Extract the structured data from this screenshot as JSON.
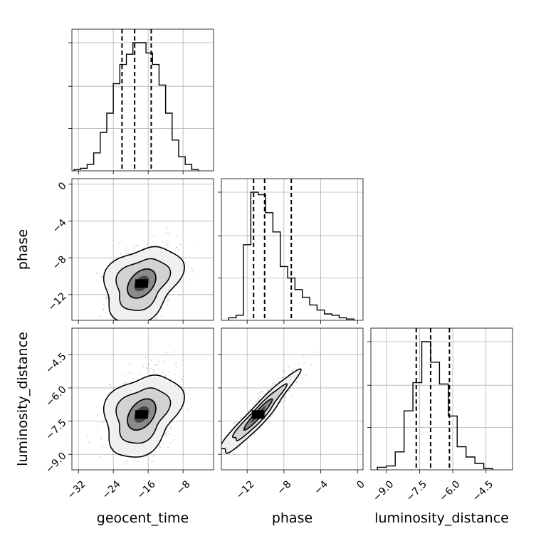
{
  "chart_data": {
    "type": "corner",
    "parameters": [
      "geocent_time",
      "phase",
      "luminosity_distance"
    ],
    "axes": {
      "geocent_time": {
        "range": [
          -33.5,
          -1.0
        ],
        "ticks": [
          -32,
          -24,
          -16,
          -8
        ],
        "tick_labels": [
          "−32",
          "−24",
          "−16",
          "−8"
        ]
      },
      "phase": {
        "range": [
          -14.8,
          0.6
        ],
        "ticks": [
          -12,
          -8,
          -4,
          0
        ],
        "tick_labels": [
          "−12",
          "−8",
          "−4",
          "0"
        ]
      },
      "luminosity_distance": {
        "range": [
          -9.7,
          -3.3
        ],
        "ticks": [
          -9.0,
          -7.5,
          -6.0,
          -4.5
        ],
        "tick_labels": [
          "−9.0",
          "−7.5",
          "−6.0",
          "−4.5"
        ]
      }
    },
    "histograms": [
      {
        "parameter": "geocent_time",
        "bin_edges": [
          -33.0,
          -31.5,
          -30.0,
          -28.5,
          -27.0,
          -25.5,
          -24.0,
          -22.5,
          -21.0,
          -19.5,
          -18.0,
          -16.5,
          -15.0,
          -13.5,
          -12.0,
          -10.5,
          -9.0,
          -7.5,
          -6.0,
          -4.5
        ],
        "counts": [
          0.01,
          0.02,
          0.05,
          0.14,
          0.3,
          0.45,
          0.68,
          0.83,
          0.91,
          1.0,
          1.0,
          0.92,
          0.83,
          0.67,
          0.45,
          0.24,
          0.11,
          0.05,
          0.01
        ],
        "quantiles": [
          -22.0,
          -19.1,
          -15.3
        ]
      },
      {
        "parameter": "phase",
        "bin_edges": [
          -14.0,
          -13.2,
          -12.4,
          -11.6,
          -10.8,
          -10.0,
          -9.2,
          -8.4,
          -7.6,
          -6.8,
          -6.0,
          -5.2,
          -4.4,
          -3.6,
          -2.8,
          -2.0,
          -1.2,
          -0.4
        ],
        "counts": [
          0.02,
          0.04,
          0.59,
          1.0,
          0.98,
          0.84,
          0.69,
          0.42,
          0.33,
          0.24,
          0.18,
          0.12,
          0.08,
          0.05,
          0.04,
          0.02,
          0.01
        ],
        "quantiles": [
          -11.3,
          -10.1,
          -7.2
        ]
      },
      {
        "parameter": "luminosity_distance",
        "bin_edges": [
          -9.4,
          -9.0,
          -8.6,
          -8.2,
          -7.8,
          -7.4,
          -7.0,
          -6.6,
          -6.2,
          -5.8,
          -5.4,
          -5.0,
          -4.6,
          -4.2
        ],
        "counts": [
          0.02,
          0.03,
          0.14,
          0.46,
          0.68,
          1.0,
          0.84,
          0.67,
          0.42,
          0.18,
          0.1,
          0.05,
          0.01
        ],
        "quantiles": [
          -7.65,
          -7.0,
          -6.15
        ]
      }
    ],
    "pairs": [
      {
        "x": "geocent_time",
        "y": "phase",
        "peak": [
          -17.5,
          -10.8
        ],
        "sigma": [
          3.8,
          1.8
        ],
        "rho": 0.3
      },
      {
        "x": "geocent_time",
        "y": "luminosity_distance",
        "peak": [
          -17.5,
          -7.2
        ],
        "sigma": [
          3.8,
          0.8
        ],
        "rho": 0.3
      },
      {
        "x": "phase",
        "y": "luminosity_distance",
        "peak": [
          -10.8,
          -7.2
        ],
        "sigma": [
          1.8,
          0.8
        ],
        "rho": 0.95
      }
    ]
  }
}
